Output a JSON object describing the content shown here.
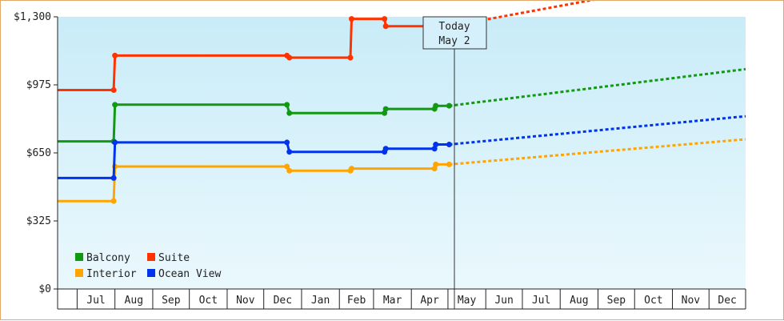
{
  "chart_data": {
    "type": "line",
    "title": "",
    "xlabel": "",
    "ylabel": "",
    "ylim": [
      0,
      1300
    ],
    "y_ticks": [
      "$0",
      "$325",
      "$650",
      "$975",
      "$1,300"
    ],
    "y_tick_values": [
      0,
      325,
      650,
      975,
      1300
    ],
    "x_ticks": [
      "Jul",
      "Aug",
      "Sep",
      "Oct",
      "Nov",
      "Dec",
      "Jan",
      "Feb",
      "Mar",
      "Apr",
      "May",
      "Jun",
      "Jul",
      "Aug",
      "Sep",
      "Oct",
      "Nov",
      "Dec"
    ],
    "background_gradient": [
      "#c9ecf8",
      "#eaf8fd"
    ],
    "grid": false,
    "legend_position": "bottom-left",
    "today_marker": {
      "line1": "Today",
      "line2": "May 2"
    },
    "series": [
      {
        "name": "Balcony",
        "color": "#119911",
        "history": [
          [
            "2014-06-15",
            705
          ],
          [
            "2014-07-31",
            705
          ],
          [
            "2014-08-01",
            880
          ],
          [
            "2014-12-20",
            880
          ],
          [
            "2014-12-22",
            840
          ],
          [
            "2015-03-10",
            840
          ],
          [
            "2015-03-11",
            860
          ],
          [
            "2015-04-20",
            860
          ],
          [
            "2015-04-21",
            875
          ],
          [
            "2015-05-02",
            875
          ]
        ],
        "forecast": [
          [
            "2015-05-02",
            875
          ],
          [
            "2015-12-31",
            1050
          ]
        ]
      },
      {
        "name": "Suite",
        "color": "#ff3300",
        "history": [
          [
            "2014-06-15",
            950
          ],
          [
            "2014-07-31",
            950
          ],
          [
            "2014-08-01",
            1115
          ],
          [
            "2014-12-20",
            1115
          ],
          [
            "2014-12-22",
            1105
          ],
          [
            "2015-02-10",
            1105
          ],
          [
            "2015-02-11",
            1290
          ],
          [
            "2015-03-10",
            1290
          ],
          [
            "2015-03-11",
            1255
          ],
          [
            "2015-05-02",
            1255
          ]
        ],
        "forecast": [
          [
            "2015-05-02",
            1255
          ],
          [
            "2015-12-31",
            1515
          ]
        ]
      },
      {
        "name": "Interior",
        "color": "#ffa500",
        "history": [
          [
            "2014-06-15",
            420
          ],
          [
            "2014-07-31",
            420
          ],
          [
            "2014-08-01",
            585
          ],
          [
            "2014-12-20",
            585
          ],
          [
            "2014-12-22",
            565
          ],
          [
            "2015-02-10",
            565
          ],
          [
            "2015-02-11",
            575
          ],
          [
            "2015-04-20",
            575
          ],
          [
            "2015-04-21",
            595
          ],
          [
            "2015-05-02",
            595
          ]
        ],
        "forecast": [
          [
            "2015-05-02",
            595
          ],
          [
            "2015-12-31",
            715
          ]
        ]
      },
      {
        "name": "Ocean View",
        "color": "#0033ee",
        "history": [
          [
            "2014-06-15",
            530
          ],
          [
            "2014-07-31",
            530
          ],
          [
            "2014-08-01",
            700
          ],
          [
            "2014-12-20",
            700
          ],
          [
            "2014-12-22",
            655
          ],
          [
            "2015-03-10",
            655
          ],
          [
            "2015-03-11",
            670
          ],
          [
            "2015-04-20",
            670
          ],
          [
            "2015-04-21",
            690
          ],
          [
            "2015-05-02",
            690
          ]
        ],
        "forecast": [
          [
            "2015-05-02",
            690
          ],
          [
            "2015-12-31",
            825
          ]
        ]
      }
    ]
  }
}
